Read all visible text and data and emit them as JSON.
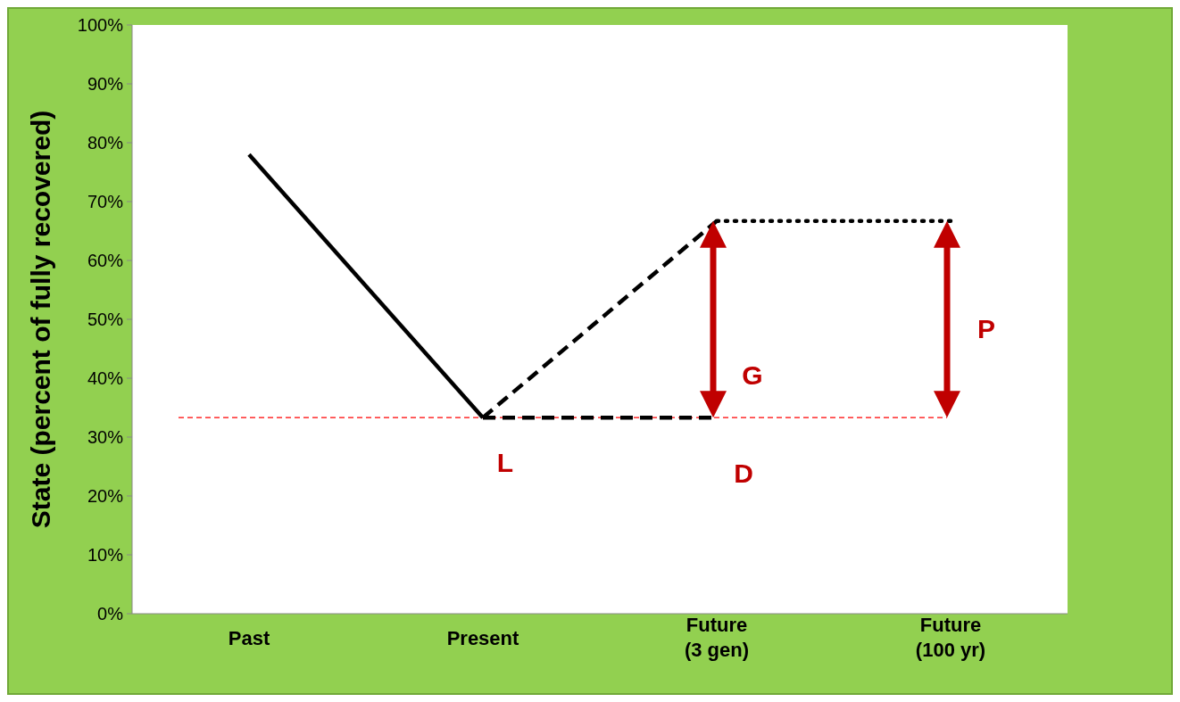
{
  "chart_data": {
    "type": "line",
    "ylabel": "State (percent of fully recovered)",
    "categories": [
      "Past",
      "Present",
      "Future\n(3 gen)",
      "Future\n(100 yr)"
    ],
    "series": [
      {
        "color": "#000000",
        "line_style": "solid",
        "values": [
          78,
          33.3,
          null,
          null
        ]
      },
      {
        "color": "#000000",
        "line_style": "dashed",
        "values": [
          null,
          33.3,
          66.7,
          null
        ]
      },
      {
        "color": "#000000",
        "line_style": "dashed",
        "values": [
          null,
          33.3,
          33.3,
          null
        ]
      },
      {
        "color": "#000000",
        "line_style": "dotted",
        "values": [
          null,
          null,
          66.7,
          66.7
        ]
      }
    ],
    "ylim": [
      0,
      100
    ],
    "yticks": [
      {
        "value": 0,
        "label": "0%"
      },
      {
        "value": 10,
        "label": "10%"
      },
      {
        "value": 20,
        "label": "20%"
      },
      {
        "value": 30,
        "label": "30%"
      },
      {
        "value": 40,
        "label": "40%"
      },
      {
        "value": 50,
        "label": "50%"
      },
      {
        "value": 60,
        "label": "60%"
      },
      {
        "value": 70,
        "label": "70%"
      },
      {
        "value": 80,
        "label": "80%"
      },
      {
        "value": 90,
        "label": "90%"
      },
      {
        "value": 100,
        "label": "100%"
      }
    ],
    "ref_lines": [
      {
        "axis": "y",
        "value": 33.3,
        "color": "#ff0000",
        "line_style": "dashed"
      }
    ],
    "annotations": [
      "L",
      "G",
      "D",
      "P"
    ],
    "grid": false,
    "marker": "none"
  }
}
